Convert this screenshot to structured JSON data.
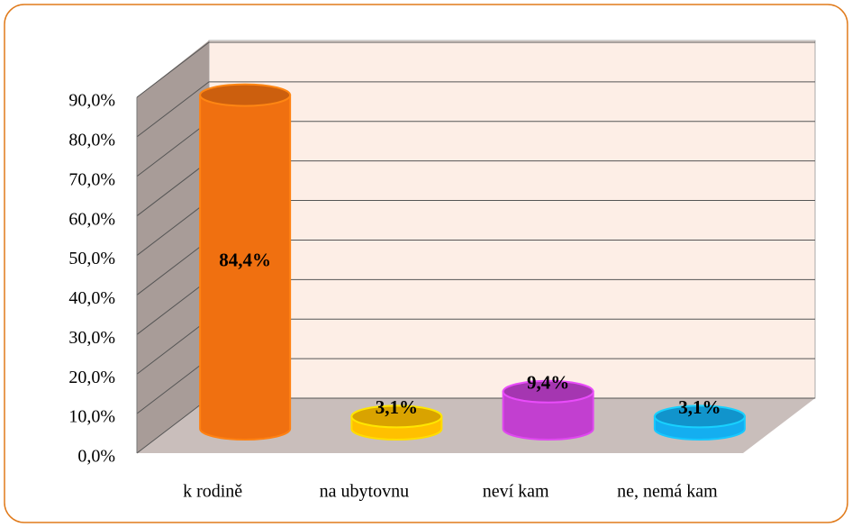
{
  "chart_data": {
    "type": "bar",
    "categories": [
      "k rodině",
      "na ubytovnu",
      "neví kam",
      "ne, nemá kam"
    ],
    "values": [
      84.4,
      3.1,
      9.4,
      3.1
    ],
    "value_labels": [
      "84,4%",
      "3,1%",
      "9,4%",
      "3,1%"
    ],
    "colors": [
      "#f07010",
      "#ffc000",
      "#c23fd0",
      "#14aef0"
    ],
    "ylim": [
      0,
      90
    ],
    "yticks": [
      {
        "value": 0,
        "label": "0,0%"
      },
      {
        "value": 10,
        "label": "10,0%"
      },
      {
        "value": 20,
        "label": "20,0%"
      },
      {
        "value": 30,
        "label": "30,0%"
      },
      {
        "value": 40,
        "label": "40,0%"
      },
      {
        "value": 50,
        "label": "50,0%"
      },
      {
        "value": 60,
        "label": "60,0%"
      },
      {
        "value": 70,
        "label": "70,0%"
      },
      {
        "value": 80,
        "label": "80,0%"
      },
      {
        "value": 90,
        "label": "90,0%"
      }
    ],
    "grid": true
  }
}
